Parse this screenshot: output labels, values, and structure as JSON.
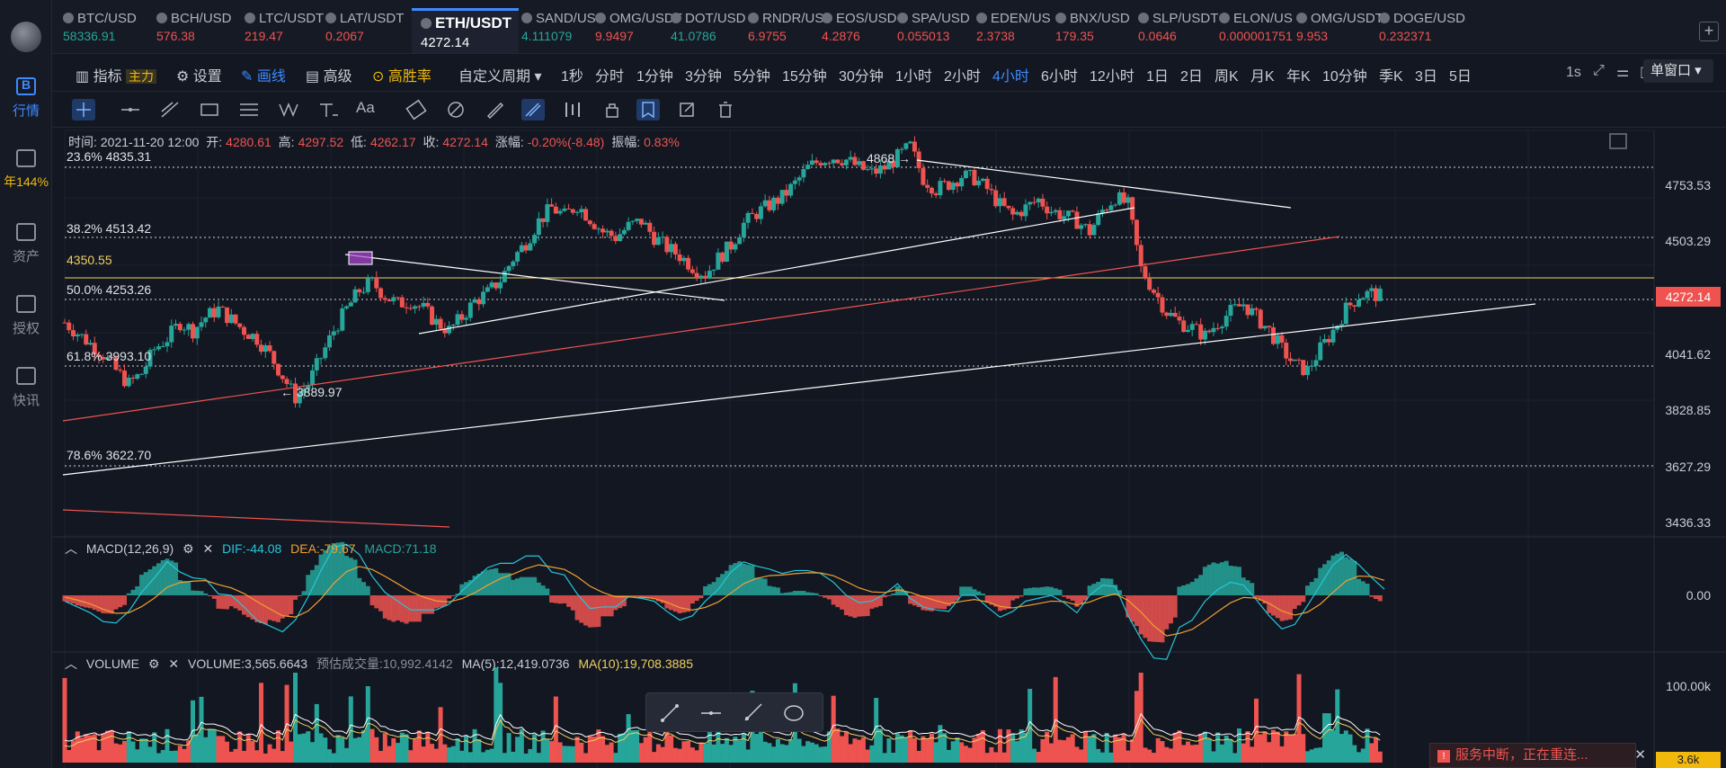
{
  "leftbar": {
    "items": [
      {
        "label": "行情",
        "icon": "market-icon"
      },
      {
        "label": "年144%",
        "icon": "yield-icon"
      },
      {
        "label": "资产",
        "icon": "wallet-icon"
      },
      {
        "label": "授权",
        "icon": "key-icon"
      },
      {
        "label": "快讯",
        "icon": "news-icon"
      }
    ]
  },
  "tabs": [
    {
      "symbol": "BTC/USD",
      "price": "58336.91",
      "dir": "up"
    },
    {
      "symbol": "BCH/USD",
      "price": "576.38",
      "dir": "down"
    },
    {
      "symbol": "LTC/USDT",
      "price": "219.47",
      "dir": "down"
    },
    {
      "symbol": "LAT/USDT",
      "price": "0.2067",
      "dir": "down"
    },
    {
      "symbol": "ETH/USDT",
      "price": "4272.14",
      "dir": "active"
    },
    {
      "symbol": "SAND/US",
      "price": "4.111079",
      "dir": "up"
    },
    {
      "symbol": "OMG/USDT",
      "price": "9.9497",
      "dir": "down"
    },
    {
      "symbol": "DOT/USD",
      "price": "41.0786",
      "dir": "up"
    },
    {
      "symbol": "RNDR/US",
      "price": "6.9755",
      "dir": "down"
    },
    {
      "symbol": "EOS/USD",
      "price": "4.2876",
      "dir": "down"
    },
    {
      "symbol": "SPA/USD",
      "price": "0.055013",
      "dir": "down"
    },
    {
      "symbol": "EDEN/US",
      "price": "2.3738",
      "dir": "down"
    },
    {
      "symbol": "BNX/USD",
      "price": "179.35",
      "dir": "down"
    },
    {
      "symbol": "SLP/USDT",
      "price": "0.0646",
      "dir": "down"
    },
    {
      "symbol": "ELON/US",
      "price": "0.000001751",
      "dir": "down"
    },
    {
      "symbol": "OMG/USDT",
      "price": "9.953",
      "dir": "down"
    },
    {
      "symbol": "DOGE/USD",
      "price": "0.232371",
      "dir": "down"
    }
  ],
  "toolbar": {
    "indicator": "指标",
    "main_badge": "主力",
    "settings": "设置",
    "draw": "画线",
    "advanced": "高级",
    "winrate": "高胜率",
    "custom_period": "自定义周期",
    "periods": [
      "1秒",
      "分时",
      "1分钟",
      "3分钟",
      "5分钟",
      "15分钟",
      "30分钟",
      "1小时",
      "2小时",
      "4小时",
      "6小时",
      "12小时",
      "1日",
      "2日",
      "周K",
      "月K",
      "年K",
      "10分钟",
      "季K",
      "3日",
      "5日"
    ],
    "active_period": "4小时",
    "interval": "1s",
    "window_mode": "单窗口"
  },
  "info": {
    "time_label": "时间:",
    "time": "2021-11-20 12:00",
    "open_label": "开:",
    "open": "4280.61",
    "high_label": "高:",
    "high": "4297.52",
    "low_label": "低:",
    "low": "4262.17",
    "close_label": "收:",
    "close": "4272.14",
    "chg_label": "涨幅:",
    "chg": "-0.20%(-8.48)",
    "amp_label": "振幅:",
    "amp": "0.83%"
  },
  "fib": [
    {
      "label": "23.6% 4835.31"
    },
    {
      "label": "38.2% 4513.42"
    },
    {
      "label": "50.0% 4253.26"
    },
    {
      "label": "61.8% 3993.10"
    },
    {
      "label": "78.6% 3622.70"
    }
  ],
  "gold_line_label": "4350.55",
  "annotations": {
    "peak": "4868 →",
    "trough": "← 3889.97"
  },
  "yaxis": [
    "4753.53",
    "4503.29",
    "4041.62",
    "3828.85",
    "3627.29",
    "3436.33"
  ],
  "current_price": "4272.14",
  "macd": {
    "title": "MACD(12,26,9)",
    "dif": "DIF:-44.08",
    "dea": "DEA:-79.67",
    "macd": "MACD:71.18",
    "zero": "0.00"
  },
  "volume": {
    "title": "VOLUME",
    "vol": "VOLUME:3,565.6643",
    "est": "预估成交量:10,992.4142",
    "ma5": "MA(5):12,419.0736",
    "ma10": "MA(10):19,708.3885",
    "axis": "100.00k",
    "current": "3.6k"
  },
  "alert": "服务中断，正在重连...",
  "colors": {
    "up": "#26a69a",
    "down": "#ef5350",
    "accent": "#3d8bff",
    "gold": "#f0b90b"
  },
  "chart_data": {
    "type": "candlestick",
    "symbol": "ETH/USDT",
    "interval": "4小时",
    "ylim": [
      3400,
      4900
    ],
    "close_path": [
      4180,
      4140,
      4100,
      4060,
      4000,
      3950,
      3990,
      4080,
      4120,
      4180,
      4150,
      4200,
      4230,
      4190,
      4150,
      4120,
      4060,
      3980,
      3900,
      3950,
      4050,
      4150,
      4230,
      4300,
      4330,
      4280,
      4250,
      4260,
      4230,
      4180,
      4150,
      4200,
      4260,
      4290,
      4340,
      4420,
      4480,
      4560,
      4610,
      4580,
      4620,
      4570,
      4520,
      4500,
      4540,
      4560,
      4500,
      4460,
      4430,
      4390,
      4360,
      4420,
      4470,
      4550,
      4590,
      4620,
      4650,
      4700,
      4760,
      4790,
      4800,
      4790,
      4760,
      4740,
      4760,
      4800,
      4840,
      4720,
      4680,
      4700,
      4730,
      4720,
      4680,
      4620,
      4580,
      4610,
      4640,
      4600,
      4580,
      4560,
      4520,
      4600,
      4650,
      4620,
      4380,
      4300,
      4220,
      4180,
      4160,
      4130,
      4180,
      4220,
      4250,
      4200,
      4150,
      4080,
      4020,
      4000,
      4080,
      4150,
      4230,
      4280,
      4290,
      4272
    ],
    "macd_dif": -44.08,
    "macd_dea": -79.67,
    "macd_hist": 71.18
  }
}
